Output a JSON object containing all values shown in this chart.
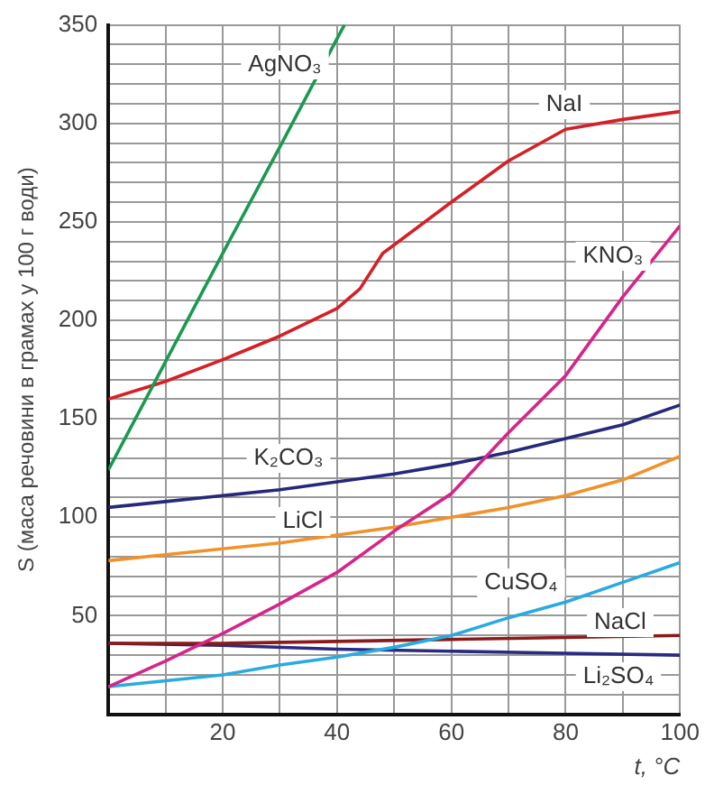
{
  "chart_data": {
    "type": "line",
    "xlabel": "t, °C",
    "ylabel": "S (маса речовини в грамах у 100 г води)",
    "xlim": [
      0,
      100
    ],
    "xticks": [
      {
        "value": 0,
        "label": null
      },
      {
        "value": 10,
        "label": null
      },
      20,
      {
        "value": 30,
        "label": null
      },
      40,
      {
        "value": 50,
        "label": null
      },
      60,
      {
        "value": 70,
        "label": null
      },
      80,
      {
        "value": 90,
        "label": null
      },
      100
    ],
    "ylim": [
      0,
      350
    ],
    "yticks": [
      {
        "value": 0,
        "label": null
      },
      {
        "value": 10,
        "label": null
      },
      {
        "value": 20,
        "label": null
      },
      {
        "value": 30,
        "label": null
      },
      {
        "value": 40,
        "label": null
      },
      50,
      {
        "value": 60,
        "label": null
      },
      {
        "value": 70,
        "label": null
      },
      {
        "value": 80,
        "label": null
      },
      {
        "value": 90,
        "label": null
      },
      100,
      {
        "value": 110,
        "label": null
      },
      {
        "value": 120,
        "label": null
      },
      {
        "value": 130,
        "label": null
      },
      {
        "value": 140,
        "label": null
      },
      150,
      {
        "value": 160,
        "label": null
      },
      {
        "value": 170,
        "label": null
      },
      {
        "value": 180,
        "label": null
      },
      {
        "value": 190,
        "label": null
      },
      200,
      {
        "value": 210,
        "label": null
      },
      {
        "value": 220,
        "label": null
      },
      {
        "value": 230,
        "label": null
      },
      {
        "value": 240,
        "label": null
      },
      250,
      {
        "value": 260,
        "label": null
      },
      {
        "value": 270,
        "label": null
      },
      {
        "value": 280,
        "label": null
      },
      {
        "value": 290,
        "label": null
      },
      300,
      {
        "value": 310,
        "label": null
      },
      {
        "value": 320,
        "label": null
      },
      {
        "value": 330,
        "label": null
      },
      {
        "value": 340,
        "label": null
      },
      350
    ],
    "grid": true,
    "legend": false,
    "marker": "none",
    "line_style": "solid",
    "series": [
      {
        "name": "AgNO₃",
        "color": "#1a9a50",
        "x": [
          0,
          10,
          20,
          30,
          40,
          41.3
        ],
        "values": [
          124,
          179,
          234,
          288,
          343,
          350
        ]
      },
      {
        "name": "NaI",
        "color": "#d42027",
        "x": [
          0,
          10,
          20,
          30,
          40,
          44,
          48,
          60,
          70,
          80,
          90,
          100
        ],
        "values": [
          160,
          169,
          180,
          192,
          206,
          216,
          234,
          260,
          281,
          297,
          302,
          306
        ]
      },
      {
        "name": "KNO₃",
        "color": "#d6258a",
        "x": [
          0,
          10,
          20,
          30,
          40,
          50,
          60,
          70,
          80,
          90,
          100
        ],
        "values": [
          14,
          27,
          41,
          56,
          72,
          93,
          112,
          143,
          172,
          212,
          248
        ]
      },
      {
        "name": "K₂CO₃",
        "color": "#28287a",
        "x": [
          0,
          10,
          20,
          30,
          40,
          50,
          60,
          70,
          80,
          90,
          100
        ],
        "values": [
          105,
          108,
          111,
          114,
          118,
          122,
          127,
          133,
          140,
          147,
          157
        ]
      },
      {
        "name": "LiCl",
        "color": "#f0922a",
        "x": [
          0,
          10,
          20,
          30,
          40,
          50,
          60,
          70,
          80,
          90,
          100
        ],
        "values": [
          78,
          81,
          84,
          87,
          91,
          95,
          100,
          105,
          111,
          119,
          131
        ]
      },
      {
        "name": "CuSO₄",
        "color": "#2aaadf",
        "x": [
          0,
          10,
          20,
          30,
          40,
          50,
          60,
          70,
          80,
          90,
          100
        ],
        "values": [
          14,
          17,
          20,
          25,
          29,
          34,
          40,
          49,
          57,
          67,
          77
        ]
      },
      {
        "name": "NaCl",
        "color": "#8b1a1a",
        "x": [
          0,
          20,
          40,
          60,
          80,
          100
        ],
        "values": [
          36,
          36,
          37,
          38,
          39,
          40
        ]
      },
      {
        "name": "Li₂SO₄",
        "color": "#2a2a80",
        "x": [
          0,
          20,
          40,
          60,
          80,
          100
        ],
        "values": [
          36,
          35,
          33,
          32,
          31,
          30
        ]
      }
    ]
  }
}
